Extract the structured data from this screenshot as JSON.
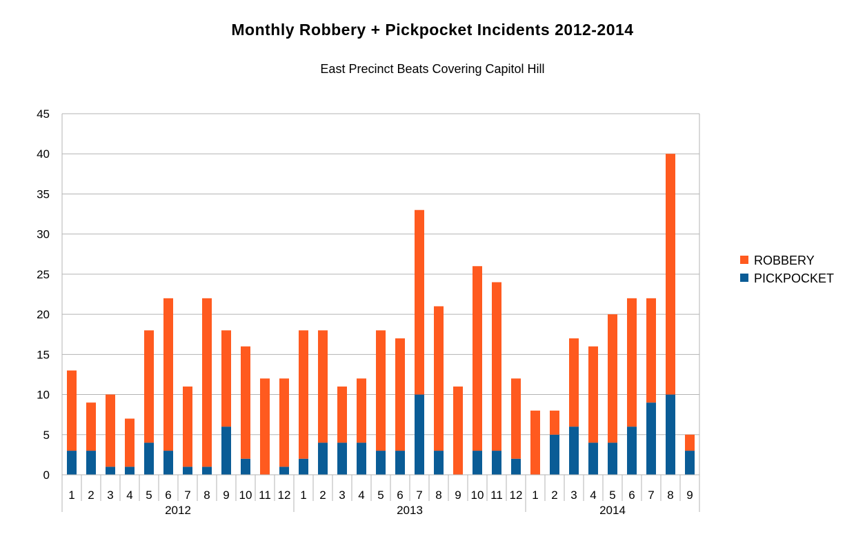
{
  "chart_data": {
    "type": "bar",
    "stacked": true,
    "title": "Monthly Robbery + Pickpocket Incidents 2012-2014",
    "subtitle": "East Precinct Beats Covering Capitol Hill",
    "xlabel": "",
    "ylabel": "",
    "ylim": [
      0,
      45
    ],
    "yticks": [
      0,
      5,
      10,
      15,
      20,
      25,
      30,
      35,
      40,
      45
    ],
    "grid": true,
    "legend_position": "right",
    "groups": [
      {
        "label": "2012",
        "months": [
          "1",
          "2",
          "3",
          "4",
          "5",
          "6",
          "7",
          "8",
          "9",
          "10",
          "11",
          "12"
        ]
      },
      {
        "label": "2013",
        "months": [
          "1",
          "2",
          "3",
          "4",
          "5",
          "6",
          "7",
          "8",
          "9",
          "10",
          "11",
          "12"
        ]
      },
      {
        "label": "2014",
        "months": [
          "1",
          "2",
          "3",
          "4",
          "5",
          "6",
          "7",
          "8",
          "9"
        ]
      }
    ],
    "series": [
      {
        "name": "PICKPOCKET",
        "color": "#0a5c96",
        "values": [
          3,
          3,
          1,
          1,
          4,
          3,
          1,
          1,
          6,
          2,
          0,
          1,
          2,
          4,
          4,
          4,
          3,
          3,
          10,
          3,
          0,
          3,
          3,
          2,
          0,
          5,
          6,
          4,
          4,
          6,
          9,
          10,
          3
        ]
      },
      {
        "name": "ROBBERY",
        "color": "#ff5a1f",
        "values": [
          10,
          6,
          9,
          6,
          14,
          19,
          10,
          21,
          12,
          14,
          12,
          11,
          16,
          14,
          7,
          8,
          15,
          14,
          23,
          18,
          11,
          23,
          21,
          10,
          8,
          3,
          11,
          12,
          16,
          16,
          13,
          30,
          2
        ]
      }
    ],
    "totals": [
      13,
      9,
      10,
      7,
      18,
      22,
      11,
      22,
      18,
      16,
      12,
      12,
      18,
      18,
      11,
      12,
      18,
      17,
      33,
      21,
      11,
      26,
      24,
      12,
      8,
      8,
      17,
      16,
      20,
      22,
      22,
      40,
      5
    ]
  }
}
